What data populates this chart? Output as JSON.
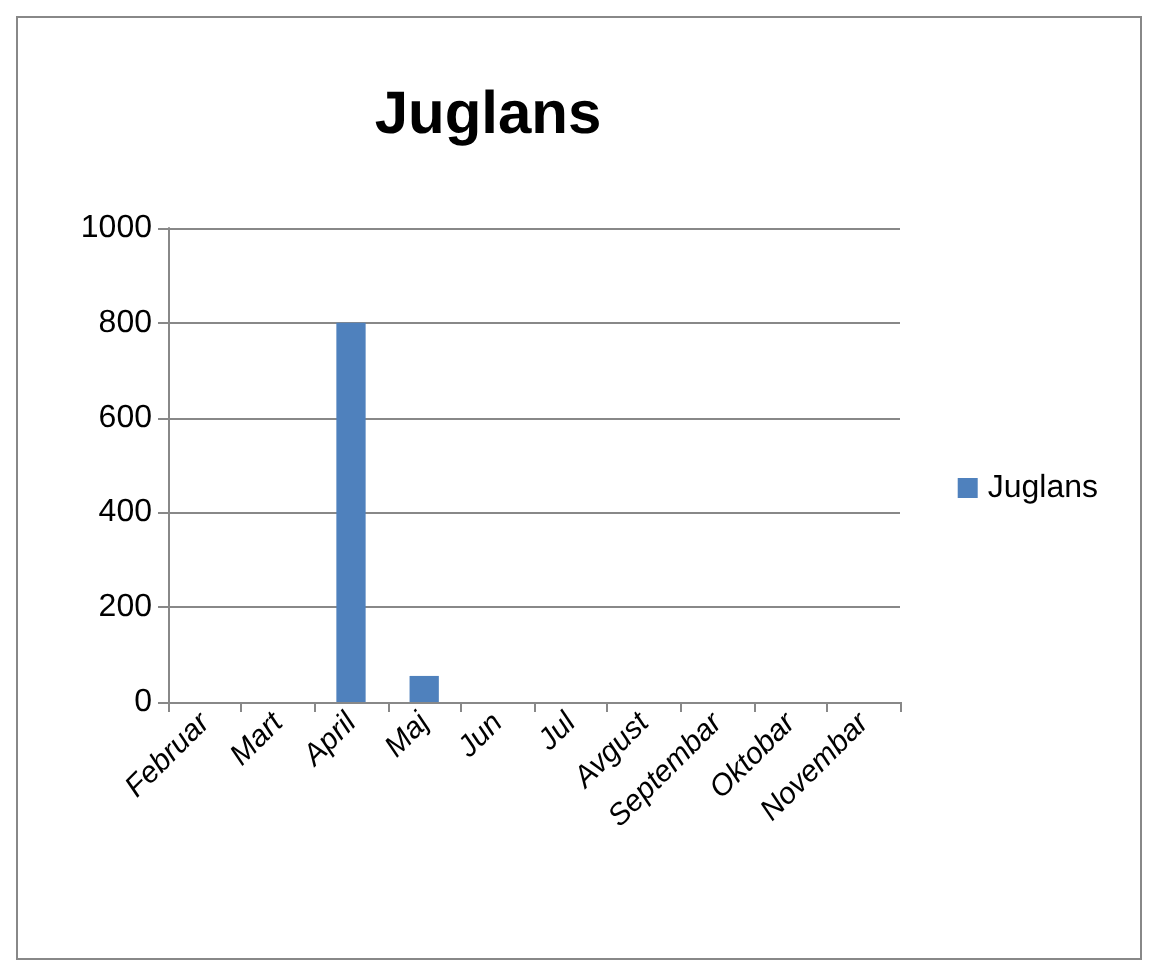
{
  "chart_data": {
    "type": "bar",
    "title": "Juglans",
    "categories": [
      "Februar",
      "Mart",
      "April",
      "Maj",
      "Jun",
      "Jul",
      "Avgust",
      "Septembar",
      "Oktobar",
      "Novembar"
    ],
    "series": [
      {
        "name": "Juglans",
        "color": "#4f81bd",
        "values": [
          0,
          0,
          800,
          55,
          0,
          0,
          0,
          0,
          0,
          0
        ]
      }
    ],
    "ylim": [
      0,
      1000
    ],
    "yticks": [
      0,
      200,
      400,
      600,
      800,
      1000
    ],
    "grid": "y",
    "legend": "right"
  }
}
